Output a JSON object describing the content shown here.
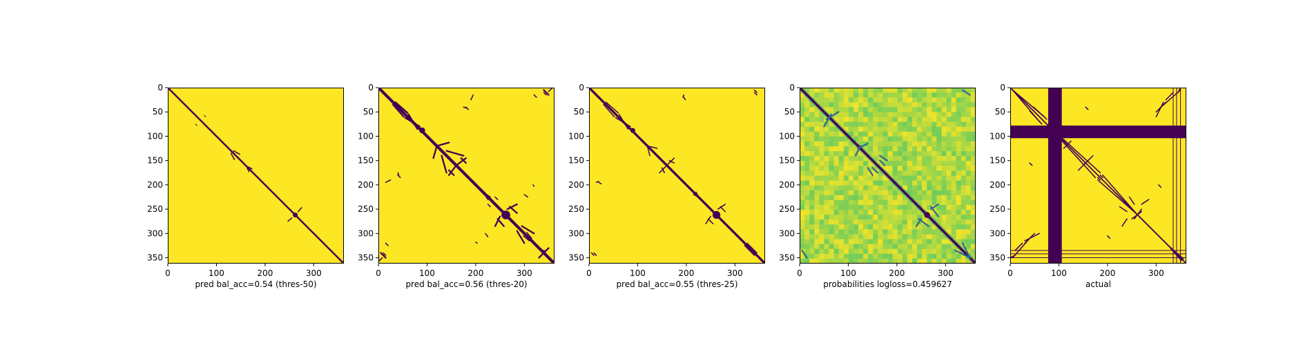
{
  "chart_data": [
    {
      "type": "heatmap",
      "kind": "binary",
      "xlabel": "pred bal_acc=0.54 (thres-50)",
      "size": 362,
      "xlim": [
        0,
        362
      ],
      "ylim": [
        362,
        0
      ],
      "x_ticks": [
        0,
        100,
        200,
        300
      ],
      "y_ticks": [
        0,
        50,
        100,
        150,
        200,
        250,
        300,
        350
      ],
      "background_color": "#fde725",
      "contact_color": "#440154",
      "diagonal": {
        "from": 0,
        "to": 362,
        "band": 3
      },
      "blobs": [
        {
          "x": 262,
          "y": 262,
          "r": 5
        }
      ],
      "segments": [
        {
          "x1": 135,
          "y1": 130,
          "x2": 148,
          "y2": 137,
          "w": 2
        },
        {
          "x1": 268,
          "y1": 255,
          "x2": 275,
          "y2": 247,
          "w": 2
        },
        {
          "x1": 163,
          "y1": 165,
          "x2": 167,
          "y2": 173,
          "w": 2
        },
        {
          "x1": 75,
          "y1": 57,
          "x2": 78,
          "y2": 60,
          "w": 1
        }
      ],
      "grid": false
    },
    {
      "type": "heatmap",
      "kind": "binary",
      "xlabel": "pred bal_acc=0.56 (thres-20)",
      "size": 362,
      "xlim": [
        0,
        362
      ],
      "ylim": [
        362,
        0
      ],
      "x_ticks": [
        0,
        100,
        200,
        300
      ],
      "y_ticks": [
        0,
        50,
        100,
        150,
        200,
        250,
        300,
        350
      ],
      "background_color": "#fde725",
      "contact_color": "#440154",
      "diagonal": {
        "from": 0,
        "to": 362,
        "band": 5
      },
      "blobs": [
        {
          "x": 90,
          "y": 88,
          "r": 6
        },
        {
          "x": 262,
          "y": 262,
          "r": 9
        },
        {
          "x": 340,
          "y": 338,
          "r": 4
        }
      ],
      "segments": [
        {
          "x1": 35,
          "y1": 30,
          "x2": 60,
          "y2": 52,
          "w": 3
        },
        {
          "x1": 55,
          "y1": 62,
          "x2": 85,
          "y2": 80,
          "w": 3
        },
        {
          "x1": 120,
          "y1": 120,
          "x2": 145,
          "y2": 113,
          "w": 3
        },
        {
          "x1": 140,
          "y1": 130,
          "x2": 175,
          "y2": 140,
          "w": 3
        },
        {
          "x1": 160,
          "y1": 160,
          "x2": 180,
          "y2": 145,
          "w": 3
        },
        {
          "x1": 145,
          "y1": 170,
          "x2": 155,
          "y2": 180,
          "w": 3
        },
        {
          "x1": 265,
          "y1": 250,
          "x2": 285,
          "y2": 240,
          "w": 3
        },
        {
          "x1": 245,
          "y1": 270,
          "x2": 258,
          "y2": 285,
          "w": 3
        },
        {
          "x1": 295,
          "y1": 285,
          "x2": 320,
          "y2": 300,
          "w": 3
        },
        {
          "x1": 340,
          "y1": 340,
          "x2": 350,
          "y2": 330,
          "w": 3
        },
        {
          "x1": 5,
          "y1": 340,
          "x2": 15,
          "y2": 350,
          "w": 3
        },
        {
          "x1": 15,
          "y1": 195,
          "x2": 25,
          "y2": 190,
          "w": 2
        },
        {
          "x1": 40,
          "y1": 175,
          "x2": 42,
          "y2": 180,
          "w": 2
        },
        {
          "x1": 350,
          "y1": 8,
          "x2": 358,
          "y2": 0,
          "w": 2
        },
        {
          "x1": 320,
          "y1": 15,
          "x2": 325,
          "y2": 20,
          "w": 2
        },
        {
          "x1": 340,
          "y1": 10,
          "x2": 345,
          "y2": 15,
          "w": 2
        },
        {
          "x1": 180,
          "y1": 40,
          "x2": 185,
          "y2": 45,
          "w": 2
        },
        {
          "x1": 215,
          "y1": 215,
          "x2": 225,
          "y2": 230,
          "w": 2
        },
        {
          "x1": 225,
          "y1": 240,
          "x2": 230,
          "y2": 245,
          "w": 2
        },
        {
          "x1": 220,
          "y1": 300,
          "x2": 225,
          "y2": 307,
          "w": 2
        },
        {
          "x1": 305,
          "y1": 298,
          "x2": 315,
          "y2": 310,
          "w": 2
        },
        {
          "x1": 200,
          "y1": 318,
          "x2": 203,
          "y2": 320,
          "w": 2
        }
      ],
      "grid": false
    },
    {
      "type": "heatmap",
      "kind": "binary",
      "xlabel": "pred bal_acc=0.55 (thres-25)",
      "size": 362,
      "xlim": [
        0,
        362
      ],
      "ylim": [
        362,
        0
      ],
      "x_ticks": [
        0,
        100,
        200,
        300
      ],
      "y_ticks": [
        0,
        50,
        100,
        150,
        200,
        250,
        300,
        350
      ],
      "background_color": "#fde725",
      "contact_color": "#440154",
      "diagonal": {
        "from": 0,
        "to": 362,
        "band": 4
      },
      "blobs": [
        {
          "x": 90,
          "y": 88,
          "r": 5
        },
        {
          "x": 262,
          "y": 262,
          "r": 8
        },
        {
          "x": 340,
          "y": 338,
          "r": 3
        }
      ],
      "segments": [
        {
          "x1": 35,
          "y1": 30,
          "x2": 60,
          "y2": 52,
          "w": 2
        },
        {
          "x1": 55,
          "y1": 62,
          "x2": 85,
          "y2": 80,
          "w": 2
        },
        {
          "x1": 120,
          "y1": 120,
          "x2": 140,
          "y2": 125,
          "w": 2
        },
        {
          "x1": 160,
          "y1": 160,
          "x2": 175,
          "y2": 145,
          "w": 2
        },
        {
          "x1": 265,
          "y1": 250,
          "x2": 280,
          "y2": 240,
          "w": 2
        },
        {
          "x1": 245,
          "y1": 270,
          "x2": 255,
          "y2": 280,
          "w": 2
        },
        {
          "x1": 325,
          "y1": 320,
          "x2": 345,
          "y2": 340,
          "w": 2
        },
        {
          "x1": 5,
          "y1": 340,
          "x2": 10,
          "y2": 345,
          "w": 2
        },
        {
          "x1": 15,
          "y1": 195,
          "x2": 20,
          "y2": 193,
          "w": 2
        },
        {
          "x1": 195,
          "y1": 20,
          "x2": 198,
          "y2": 25,
          "w": 2
        },
        {
          "x1": 340,
          "y1": 10,
          "x2": 345,
          "y2": 15,
          "w": 2
        },
        {
          "x1": 220,
          "y1": 215,
          "x2": 225,
          "y2": 225,
          "w": 2
        },
        {
          "x1": 295,
          "y1": 295,
          "x2": 305,
          "y2": 307,
          "w": 2
        },
        {
          "x1": 150,
          "y1": 165,
          "x2": 155,
          "y2": 175,
          "w": 2
        }
      ],
      "grid": false
    },
    {
      "type": "heatmap",
      "kind": "probability",
      "xlabel": "probabilities logloss=0.459627",
      "size": 362,
      "xlim": [
        0,
        362
      ],
      "ylim": [
        362,
        0
      ],
      "x_ticks": [
        0,
        100,
        200,
        300
      ],
      "y_ticks": [
        0,
        50,
        100,
        150,
        200,
        250,
        300,
        350
      ],
      "colormap": [
        "#440154",
        "#3b528b",
        "#21918c",
        "#5ec962",
        "#fde725"
      ],
      "diagonal": {
        "from": 0,
        "to": 362,
        "band": 4
      },
      "blobs": [
        {
          "x": 262,
          "y": 262,
          "r": 6
        }
      ],
      "segments": [
        {
          "x1": 55,
          "y1": 65,
          "x2": 80,
          "y2": 50,
          "w": 3
        },
        {
          "x1": 120,
          "y1": 125,
          "x2": 140,
          "y2": 115,
          "w": 3
        },
        {
          "x1": 165,
          "y1": 140,
          "x2": 180,
          "y2": 150,
          "w": 3
        },
        {
          "x1": 150,
          "y1": 165,
          "x2": 160,
          "y2": 175,
          "w": 3
        },
        {
          "x1": 245,
          "y1": 270,
          "x2": 265,
          "y2": 285,
          "w": 3
        },
        {
          "x1": 270,
          "y1": 250,
          "x2": 285,
          "y2": 240,
          "w": 3
        },
        {
          "x1": 320,
          "y1": 335,
          "x2": 350,
          "y2": 350,
          "w": 3
        },
        {
          "x1": 5,
          "y1": 335,
          "x2": 15,
          "y2": 350,
          "w": 3
        }
      ],
      "grid": false
    },
    {
      "type": "heatmap",
      "kind": "binary",
      "xlabel": "actual",
      "size": 362,
      "xlim": [
        0,
        362
      ],
      "ylim": [
        362,
        0
      ],
      "x_ticks": [
        0,
        100,
        200,
        300
      ],
      "y_ticks": [
        0,
        50,
        100,
        150,
        200,
        250,
        300,
        350
      ],
      "background_color": "#fde725",
      "contact_color": "#440154",
      "masked_bands": [
        {
          "axis": "x",
          "from": 78,
          "to": 106
        },
        {
          "axis": "y",
          "from": 78,
          "to": 104
        }
      ],
      "masked_lines": [
        335,
        342,
        350
      ],
      "diagonal": {
        "from": 0,
        "to": 362,
        "band": 2
      },
      "blobs": [],
      "segments": [
        {
          "x1": 5,
          "y1": 5,
          "x2": 70,
          "y2": 60,
          "w": 2
        },
        {
          "x1": 108,
          "y1": 105,
          "x2": 185,
          "y2": 175,
          "w": 2
        },
        {
          "x1": 190,
          "y1": 180,
          "x2": 260,
          "y2": 260,
          "w": 2
        },
        {
          "x1": 260,
          "y1": 260,
          "x2": 330,
          "y2": 330,
          "w": 2
        },
        {
          "x1": 170,
          "y1": 140,
          "x2": 150,
          "y2": 160,
          "w": 2
        },
        {
          "x1": 40,
          "y1": 48,
          "x2": 65,
          "y2": 75,
          "w": 2
        },
        {
          "x1": 120,
          "y1": 115,
          "x2": 110,
          "y2": 125,
          "w": 2
        },
        {
          "x1": 300,
          "y1": 50,
          "x2": 320,
          "y2": 30,
          "w": 2
        },
        {
          "x1": 320,
          "y1": 25,
          "x2": 335,
          "y2": 10,
          "w": 2
        },
        {
          "x1": 345,
          "y1": 10,
          "x2": 350,
          "y2": 0,
          "w": 2
        },
        {
          "x1": 5,
          "y1": 350,
          "x2": 40,
          "y2": 310,
          "w": 2
        },
        {
          "x1": 30,
          "y1": 315,
          "x2": 60,
          "y2": 300,
          "w": 2
        },
        {
          "x1": 250,
          "y1": 270,
          "x2": 270,
          "y2": 255,
          "w": 2
        },
        {
          "x1": 270,
          "y1": 240,
          "x2": 285,
          "y2": 230,
          "w": 2
        },
        {
          "x1": 225,
          "y1": 245,
          "x2": 240,
          "y2": 255,
          "w": 2
        },
        {
          "x1": 155,
          "y1": 40,
          "x2": 160,
          "y2": 45,
          "w": 2
        },
        {
          "x1": 200,
          "y1": 305,
          "x2": 205,
          "y2": 310,
          "w": 2
        },
        {
          "x1": 185,
          "y1": 180,
          "x2": 190,
          "y2": 185,
          "w": 2
        },
        {
          "x1": 330,
          "y1": 330,
          "x2": 355,
          "y2": 352,
          "w": 3
        }
      ],
      "grid": false
    }
  ]
}
